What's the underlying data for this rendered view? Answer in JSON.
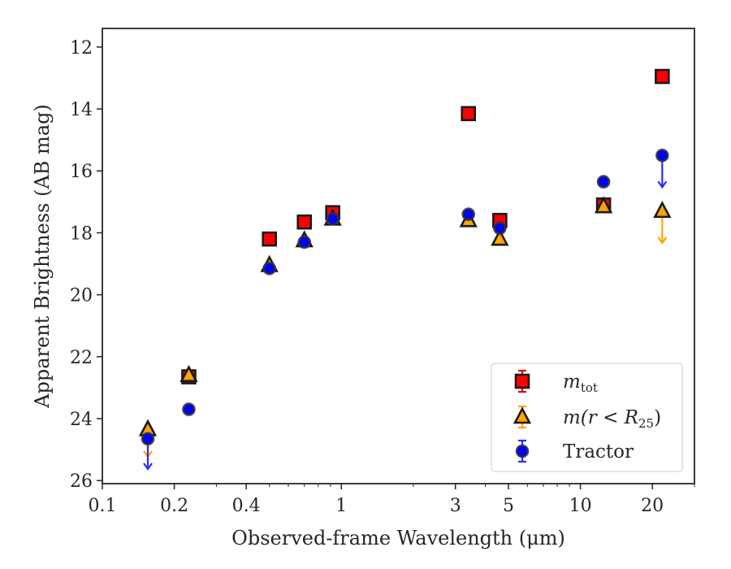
{
  "chart_data": {
    "type": "scatter",
    "title": "",
    "xlabel": "Observed-frame Wavelength (μm)",
    "ylabel": "Apparent Brightness (AB mag)",
    "xscale": "log",
    "xlim": [
      0.1,
      30
    ],
    "ylim": [
      26.1,
      11.4
    ],
    "y_inverted": true,
    "grid": false,
    "legend_position": "lower-right",
    "x_ticks": [
      {
        "value": 0.1,
        "label": "0.1"
      },
      {
        "value": 0.2,
        "label": "0.2"
      },
      {
        "value": 0.4,
        "label": "0.4"
      },
      {
        "value": 1,
        "label": "1"
      },
      {
        "value": 3,
        "label": "3"
      },
      {
        "value": 5,
        "label": "5"
      },
      {
        "value": 10,
        "label": "10"
      },
      {
        "value": 20,
        "label": "20"
      }
    ],
    "y_ticks": [
      {
        "value": 12,
        "label": "12"
      },
      {
        "value": 14,
        "label": "14"
      },
      {
        "value": 16,
        "label": "16"
      },
      {
        "value": 18,
        "label": "18"
      },
      {
        "value": 20,
        "label": "20"
      },
      {
        "value": 22,
        "label": "22"
      },
      {
        "value": 24,
        "label": "24"
      },
      {
        "value": 26,
        "label": "26"
      }
    ],
    "series": [
      {
        "name": "m_tot",
        "legend_main": "m",
        "legend_sub": "tot",
        "marker": "square",
        "face_color": "#ff0000",
        "edge_color": "#1a1a1a",
        "errorbar_color": "#e00000",
        "points": [
          {
            "x": 0.23,
            "y": 22.65
          },
          {
            "x": 0.5,
            "y": 18.2
          },
          {
            "x": 0.7,
            "y": 17.65
          },
          {
            "x": 0.92,
            "y": 17.35
          },
          {
            "x": 3.4,
            "y": 14.15
          },
          {
            "x": 4.6,
            "y": 17.6
          },
          {
            "x": 12.5,
            "y": 17.1
          },
          {
            "x": 22.0,
            "y": 12.95
          }
        ],
        "upper_limits": []
      },
      {
        "name": "m(r<R25)",
        "legend_main": "m(r < R",
        "legend_sub": "25",
        "legend_tail": ")",
        "marker": "triangle",
        "face_color": "#ffa500",
        "edge_color": "#1a1a1a",
        "errorbar_color": "#ffa500",
        "points": [
          {
            "x": 0.155,
            "y": 24.35
          },
          {
            "x": 0.23,
            "y": 22.6
          },
          {
            "x": 0.5,
            "y": 19.05
          },
          {
            "x": 0.7,
            "y": 18.25
          },
          {
            "x": 0.92,
            "y": 17.55
          },
          {
            "x": 3.4,
            "y": 17.6
          },
          {
            "x": 4.6,
            "y": 18.2
          },
          {
            "x": 12.5,
            "y": 17.15
          },
          {
            "x": 22.0,
            "y": 17.3
          }
        ],
        "upper_limits": [
          {
            "x": 0.155,
            "y_from": 24.35,
            "y_to": 25.2
          },
          {
            "x": 22.0,
            "y_from": 17.3,
            "y_to": 18.3
          }
        ]
      },
      {
        "name": "Tractor",
        "legend_main": "Tractor",
        "marker": "circle",
        "face_color": "#0000ff",
        "edge_color": "#333333",
        "errorbar_color": "#2b2bff",
        "points": [
          {
            "x": 0.155,
            "y": 24.65
          },
          {
            "x": 0.23,
            "y": 23.7
          },
          {
            "x": 0.5,
            "y": 19.15
          },
          {
            "x": 0.7,
            "y": 18.3
          },
          {
            "x": 0.92,
            "y": 17.55
          },
          {
            "x": 3.4,
            "y": 17.4
          },
          {
            "x": 4.6,
            "y": 17.85
          },
          {
            "x": 12.5,
            "y": 16.35
          },
          {
            "x": 22.0,
            "y": 15.5
          }
        ],
        "upper_limits": [
          {
            "x": 0.155,
            "y_from": 24.65,
            "y_to": 25.6
          },
          {
            "x": 22.0,
            "y_from": 15.5,
            "y_to": 16.5
          }
        ]
      }
    ]
  }
}
